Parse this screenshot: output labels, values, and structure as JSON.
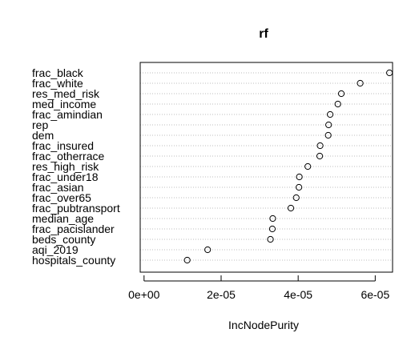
{
  "chart_data": {
    "type": "scatter",
    "title": "rf",
    "xlabel": "IncNodePurity",
    "ylabel": "",
    "xlim": [
      -1e-06,
      6.45e-05
    ],
    "x_ticks": [
      0,
      2e-05,
      4e-05,
      6e-05
    ],
    "x_tick_labels": [
      "0e+00",
      "2e-05",
      "4e-05",
      "6e-05"
    ],
    "grid": "horizontal dotted lines per variable",
    "categories": [
      "frac_black",
      "frac_white",
      "res_med_risk",
      "med_income",
      "frac_amindian",
      "rep",
      "dem",
      "frac_insured",
      "frac_otherrace",
      "res_high_risk",
      "frac_under18",
      "frac_asian",
      "frac_over65",
      "frac_pubtransport",
      "median_age",
      "frac_pacislander",
      "beds_county",
      "aqi_2019",
      "hospitals_county"
    ],
    "values": [
      6.37e-05,
      5.61e-05,
      5.12e-05,
      5.03e-05,
      4.83e-05,
      4.79e-05,
      4.78e-05,
      4.57e-05,
      4.56e-05,
      4.25e-05,
      4.03e-05,
      4.02e-05,
      3.95e-05,
      3.81e-05,
      3.34e-05,
      3.33e-05,
      3.28e-05,
      1.65e-05,
      1.12e-05
    ]
  }
}
